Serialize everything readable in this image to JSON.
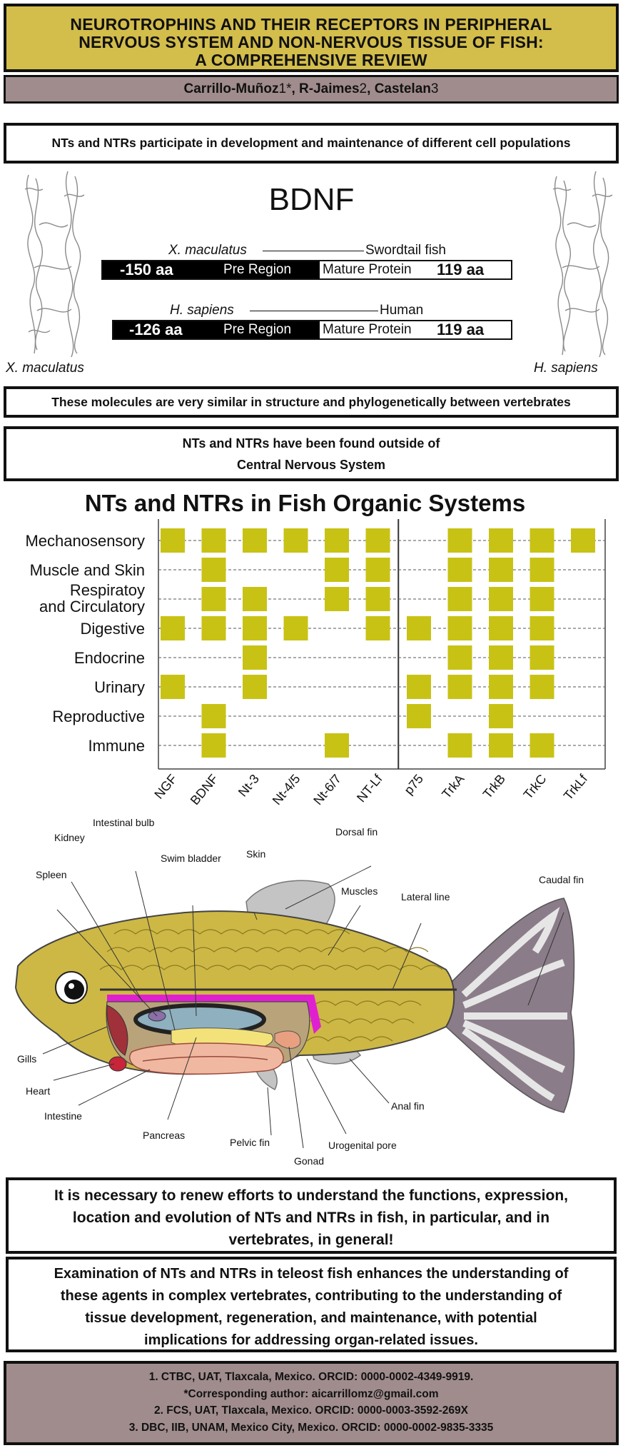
{
  "title": {
    "line1": "NEUROTROPHINS AND THEIR RECEPTORS IN PERIPHERAL",
    "line2": "NERVOUS SYSTEM AND NON-NERVOUS TISSUE OF FISH:",
    "line3": "A COMPREHENSIVE REVIEW"
  },
  "authors": {
    "a1": "Carrillo-Muñoz",
    "n1": "1*",
    "sep1": ", ",
    "a2": "R-Jaimes",
    "n2": "2",
    "sep2": ", ",
    "a3": "Castelan",
    "n3": "3"
  },
  "messages": {
    "m1": "NTs and NTRs participate in development and maintenance of different cell populations",
    "m2": "These molecules are very similar in structure and phylogenetically between vertebrates",
    "m3_line1": "NTs and NTRs have been found outside of",
    "m3_line2": "Central Nervous System",
    "m4_line1": "It is necessary to renew efforts to understand the functions, expression,",
    "m4_line2": "location and evolution of NTs and NTRs in fish, in particular, and in",
    "m4_line3": "vertebrates, in general!",
    "m5_line1": "Examination of NTs and NTRs in teleost fish enhances the understanding of",
    "m5_line2": "these agents in complex vertebrates, contributing to the understanding of",
    "m5_line3": "tissue development, regeneration, and maintenance, with potential",
    "m5_line4": "implications for addressing organ-related issues."
  },
  "bdnf": {
    "heading": "BDNF",
    "species_left_label": "X. maculatus",
    "species_right_label": "H. sapiens",
    "row1": {
      "species": "X. maculatus",
      "common": "Swordtail fish",
      "pre_aa": "-150 aa",
      "pre_label": "Pre Region",
      "mature_label": "Mature Protein",
      "mature_aa": "119 aa"
    },
    "row2": {
      "species": "H. sapiens",
      "common": "Human",
      "pre_aa": "-126 aa",
      "pre_label": "Pre Region",
      "mature_label": "Mature Protein",
      "mature_aa": "119 aa"
    }
  },
  "chart_data": {
    "type": "heatmap",
    "title": "NTs and NTRs in Fish Organic Systems",
    "columns": [
      "NGF",
      "BDNF",
      "Nt-3",
      "Nt-4/5",
      "Nt-6/7",
      "NT-Lf",
      "p75",
      "TrkA",
      "TrkB",
      "TrkC",
      "TrkLf"
    ],
    "rows": [
      "Mechanosensory",
      "Muscle and Skin",
      "Respiratoy and Circulatory",
      "Digestive",
      "Endocrine",
      "Urinary",
      "Reproductive",
      "Immune"
    ],
    "row_labels": [
      {
        "l1": "Mechanosensory"
      },
      {
        "l1": "Muscle and Skin"
      },
      {
        "l1": "Respiratoy",
        "l2": "and Circulatory"
      },
      {
        "l1": "Digestive"
      },
      {
        "l1": "Endocrine"
      },
      {
        "l1": "Urinary"
      },
      {
        "l1": "Reproductive"
      },
      {
        "l1": "Immune"
      }
    ],
    "presence": [
      [
        1,
        1,
        1,
        1,
        1,
        1,
        0,
        1,
        1,
        1,
        1
      ],
      [
        0,
        1,
        0,
        0,
        1,
        1,
        0,
        1,
        1,
        1,
        0
      ],
      [
        0,
        1,
        1,
        0,
        1,
        1,
        0,
        1,
        1,
        1,
        0
      ],
      [
        1,
        1,
        1,
        1,
        0,
        1,
        1,
        1,
        1,
        1,
        0
      ],
      [
        0,
        0,
        1,
        0,
        0,
        0,
        0,
        1,
        1,
        1,
        0
      ],
      [
        1,
        0,
        1,
        0,
        0,
        0,
        1,
        1,
        1,
        1,
        0
      ],
      [
        0,
        1,
        0,
        0,
        0,
        0,
        1,
        0,
        1,
        0,
        0
      ],
      [
        0,
        1,
        0,
        0,
        1,
        0,
        0,
        1,
        1,
        1,
        0
      ]
    ],
    "cell_color": "#c8c215",
    "grid": "dashed"
  },
  "fish_labels": {
    "intestinal_bulb": "Intestinal bulb",
    "kidney": "Kidney",
    "swim_bladder": "Swim bladder",
    "skin": "Skin",
    "dorsal_fin": "Dorsal fin",
    "spleen": "Spleen",
    "muscles": "Muscles",
    "lateral_line": "Lateral line",
    "caudal_fin": "Caudal fin",
    "gills": "Gills",
    "heart": "Heart",
    "intestine": "Intestine",
    "pancreas": "Pancreas",
    "pelvic_fin": "Pelvic fin",
    "gonad": "Gonad",
    "urogenital_pore": "Urogenital pore",
    "anal_fin": "Anal fin"
  },
  "footer": {
    "line1": "1. CTBC, UAT, Tlaxcala, Mexico. ORCID: 0000-0002-4349-9919.",
    "line2": "*Corresponding author: aicarrillomz@gmail.com",
    "line3": "2. FCS, UAT, Tlaxcala, Mexico. ORCID: 0000-0003-3592-269X",
    "line4": "3. DBC, IIB, UNAM, Mexico City, Mexico. ORCID: 0000-0002-9835-3335"
  },
  "colors": {
    "title_bg": "#d3bd4b",
    "author_bg": "#a08c8d",
    "cell": "#c8c215",
    "fish_body": "#cdb846",
    "fish_belly_stripe": "#e020d0"
  }
}
